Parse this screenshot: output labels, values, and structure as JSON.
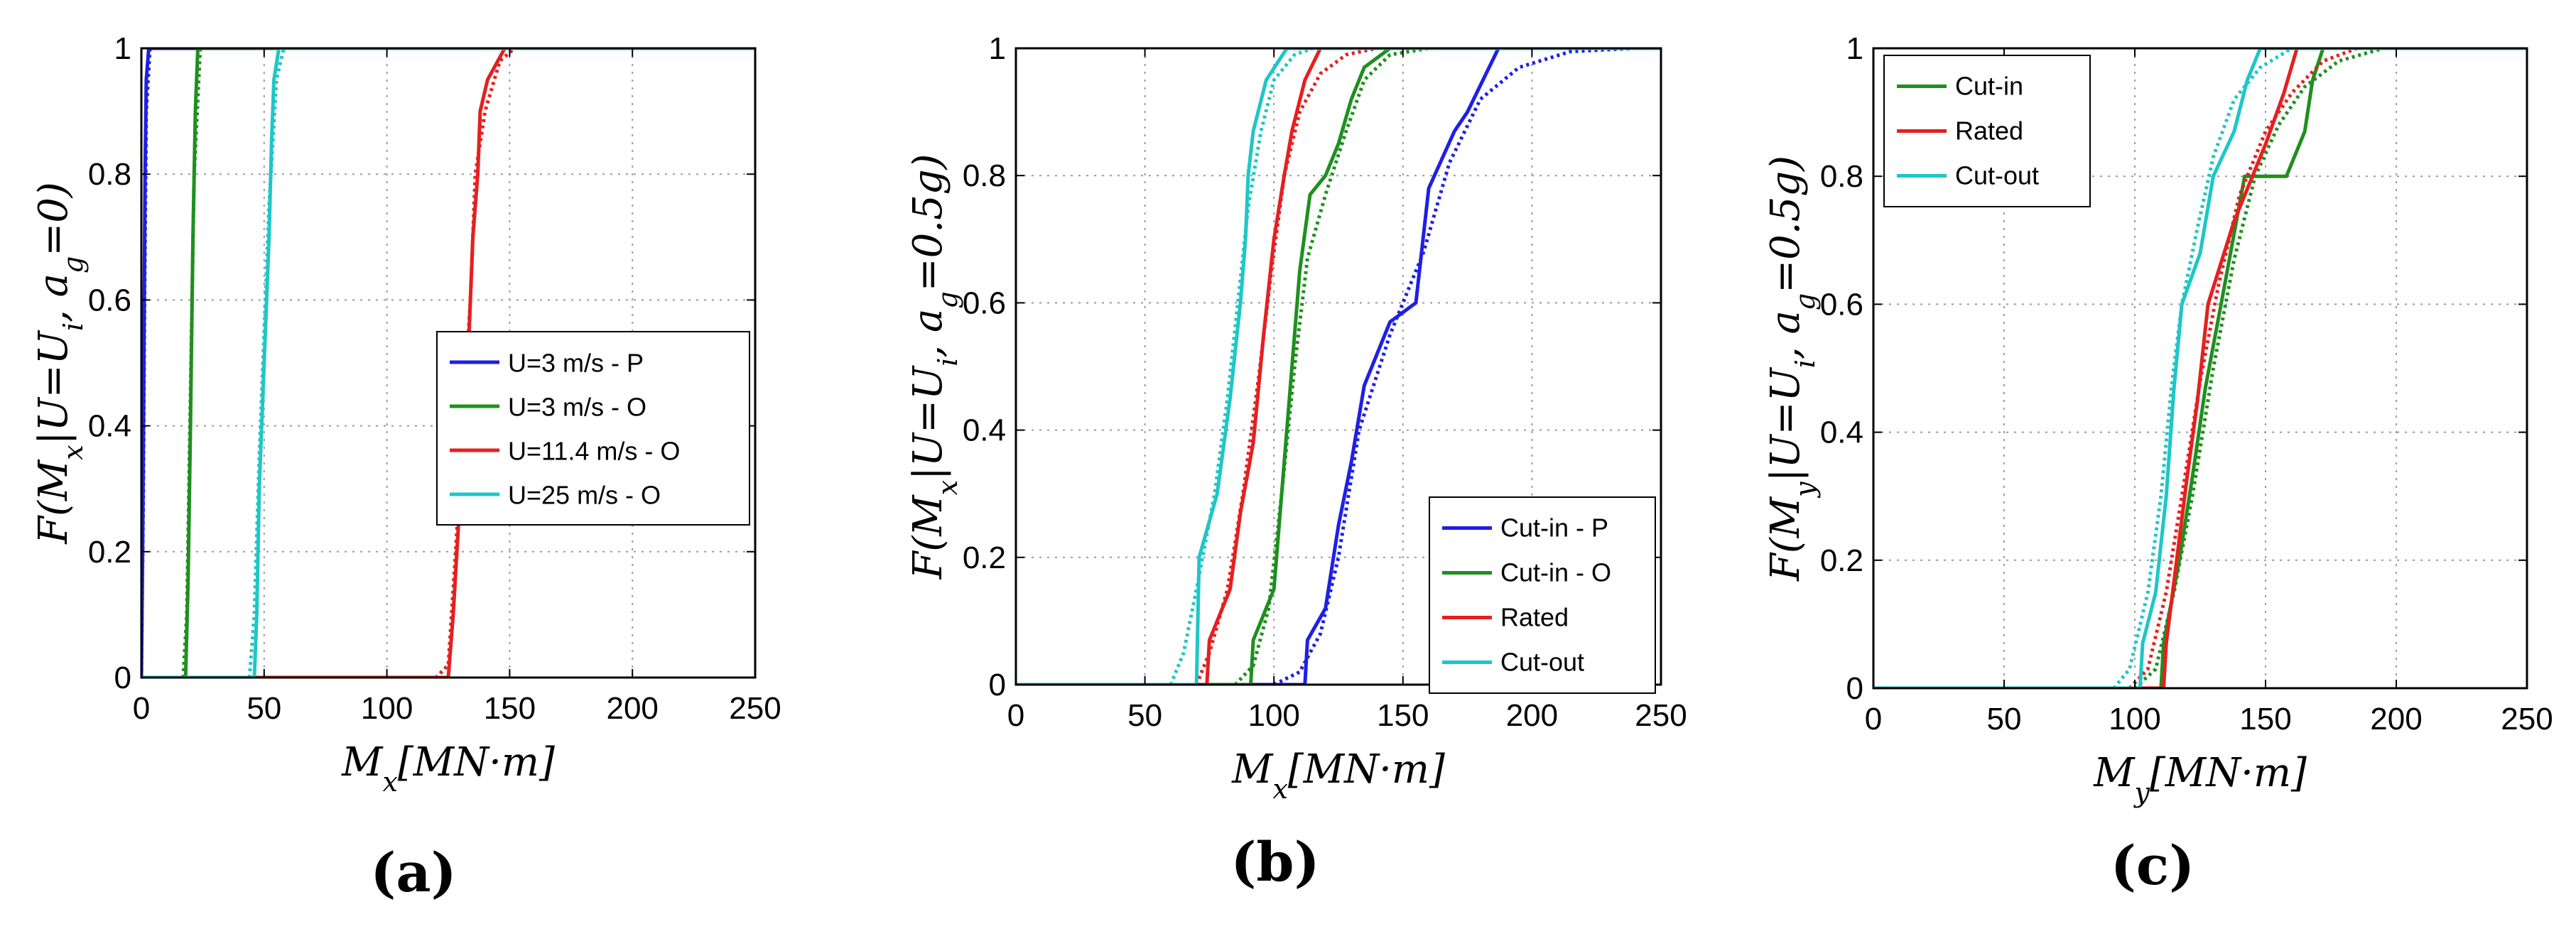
{
  "chart_data": [
    {
      "type": "line",
      "panel_label": "(a)",
      "xlabel": "M_x[MN·m]",
      "ylabel": "F(M_x|U=U_i, a_g=0)",
      "xlim": [
        0,
        250
      ],
      "ylim": [
        0,
        1
      ],
      "xticks": [
        0,
        50,
        100,
        150,
        200,
        250
      ],
      "yticks": [
        0,
        0.2,
        0.4,
        0.6,
        0.8,
        1
      ],
      "grid": true,
      "legend_position": "center-right",
      "series": [
        {
          "name": "U=3 m/s - P",
          "color": "#1f1fe6",
          "solid": [
            [
              0,
              0
            ],
            [
              0.5,
              0.2
            ],
            [
              1,
              0.5
            ],
            [
              1.5,
              0.8
            ],
            [
              2,
              0.95
            ],
            [
              3,
              1
            ],
            [
              250,
              1
            ]
          ],
          "dotted": [
            [
              0,
              0
            ],
            [
              0.8,
              0.3
            ],
            [
              1.3,
              0.6
            ],
            [
              2,
              0.9
            ],
            [
              3.5,
              1
            ]
          ]
        },
        {
          "name": "U=3 m/s - O",
          "color": "#1f8f1f",
          "solid": [
            [
              0,
              0
            ],
            [
              18,
              0
            ],
            [
              19,
              0.15
            ],
            [
              20,
              0.4
            ],
            [
              21,
              0.7
            ],
            [
              22,
              0.9
            ],
            [
              23,
              1
            ],
            [
              250,
              1
            ]
          ],
          "dotted": [
            [
              17,
              0
            ],
            [
              18.5,
              0.1
            ],
            [
              20,
              0.45
            ],
            [
              21.5,
              0.8
            ],
            [
              24,
              1
            ]
          ]
        },
        {
          "name": "U=11.4 m/s - O",
          "color": "#e61f1f",
          "solid": [
            [
              0,
              0
            ],
            [
              125,
              0
            ],
            [
              127,
              0.1
            ],
            [
              130,
              0.3
            ],
            [
              133,
              0.5
            ],
            [
              135,
              0.7
            ],
            [
              137,
              0.8
            ],
            [
              138,
              0.9
            ],
            [
              141,
              0.95
            ],
            [
              148,
              1
            ],
            [
              250,
              1
            ]
          ],
          "dotted": [
            [
              0,
              0
            ],
            [
              120,
              0
            ],
            [
              125,
              0.02
            ],
            [
              128,
              0.2
            ],
            [
              131,
              0.4
            ],
            [
              134,
              0.6
            ],
            [
              136,
              0.8
            ],
            [
              140,
              0.9
            ],
            [
              146,
              0.98
            ],
            [
              152,
              1
            ]
          ]
        },
        {
          "name": "U=25 m/s - O",
          "color": "#1fc6c6",
          "solid": [
            [
              0,
              0
            ],
            [
              46,
              0
            ],
            [
              47,
              0.1
            ],
            [
              48,
              0.3
            ],
            [
              50,
              0.5
            ],
            [
              52,
              0.7
            ],
            [
              53,
              0.85
            ],
            [
              54,
              0.95
            ],
            [
              56,
              1
            ],
            [
              250,
              1
            ]
          ],
          "dotted": [
            [
              44,
              0
            ],
            [
              46,
              0.1
            ],
            [
              48,
              0.35
            ],
            [
              50,
              0.55
            ],
            [
              52,
              0.75
            ],
            [
              55,
              0.95
            ],
            [
              58,
              1
            ]
          ]
        }
      ]
    },
    {
      "type": "line",
      "panel_label": "(b)",
      "xlabel": "M_x[MN·m]",
      "ylabel": "F(M_x|U=U_i, a_g=0.5g)",
      "xlim": [
        0,
        250
      ],
      "ylim": [
        0,
        1
      ],
      "xticks": [
        0,
        50,
        100,
        150,
        200,
        250
      ],
      "yticks": [
        0,
        0.2,
        0.4,
        0.6,
        0.8,
        1
      ],
      "grid": true,
      "legend_position": "bottom-right",
      "series": [
        {
          "name": "Cut-in - P",
          "color": "#1f1fe6",
          "solid": [
            [
              0,
              0
            ],
            [
              112,
              0
            ],
            [
              113,
              0.07
            ],
            [
              120,
              0.12
            ],
            [
              125,
              0.25
            ],
            [
              130,
              0.35
            ],
            [
              135,
              0.47
            ],
            [
              145,
              0.57
            ],
            [
              155,
              0.6
            ],
            [
              160,
              0.78
            ],
            [
              170,
              0.87
            ],
            [
              175,
              0.9
            ],
            [
              187,
              1
            ],
            [
              250,
              1
            ]
          ],
          "dotted": [
            [
              100,
              0
            ],
            [
              110,
              0.02
            ],
            [
              118,
              0.08
            ],
            [
              125,
              0.2
            ],
            [
              133,
              0.4
            ],
            [
              145,
              0.55
            ],
            [
              158,
              0.68
            ],
            [
              168,
              0.82
            ],
            [
              180,
              0.92
            ],
            [
              195,
              0.97
            ],
            [
              215,
              0.995
            ],
            [
              240,
              1
            ]
          ]
        },
        {
          "name": "Cut-in - O",
          "color": "#1f8f1f",
          "solid": [
            [
              0,
              0
            ],
            [
              91,
              0
            ],
            [
              92,
              0.07
            ],
            [
              100,
              0.15
            ],
            [
              103,
              0.3
            ],
            [
              107,
              0.5
            ],
            [
              110,
              0.65
            ],
            [
              114,
              0.77
            ],
            [
              120,
              0.8
            ],
            [
              125,
              0.85
            ],
            [
              130,
              0.92
            ],
            [
              135,
              0.97
            ],
            [
              145,
              1
            ],
            [
              250,
              1
            ]
          ],
          "dotted": [
            [
              85,
              0
            ],
            [
              92,
              0.03
            ],
            [
              98,
              0.12
            ],
            [
              103,
              0.3
            ],
            [
              108,
              0.5
            ],
            [
              113,
              0.67
            ],
            [
              120,
              0.77
            ],
            [
              128,
              0.87
            ],
            [
              135,
              0.95
            ],
            [
              145,
              0.99
            ],
            [
              160,
              1
            ]
          ]
        },
        {
          "name": "Rated",
          "color": "#e61f1f",
          "solid": [
            [
              0,
              0
            ],
            [
              74,
              0
            ],
            [
              75,
              0.07
            ],
            [
              83,
              0.15
            ],
            [
              87,
              0.27
            ],
            [
              92,
              0.38
            ],
            [
              96,
              0.55
            ],
            [
              100,
              0.7
            ],
            [
              104,
              0.8
            ],
            [
              107,
              0.87
            ],
            [
              112,
              0.95
            ],
            [
              118,
              1
            ],
            [
              250,
              1
            ]
          ],
          "dotted": [
            [
              70,
              0
            ],
            [
              75,
              0.05
            ],
            [
              82,
              0.15
            ],
            [
              88,
              0.3
            ],
            [
              94,
              0.48
            ],
            [
              99,
              0.65
            ],
            [
              104,
              0.8
            ],
            [
              110,
              0.9
            ],
            [
              118,
              0.96
            ],
            [
              128,
              0.99
            ],
            [
              140,
              1
            ]
          ]
        },
        {
          "name": "Cut-out",
          "color": "#1fc6c6",
          "solid": [
            [
              0,
              0
            ],
            [
              70,
              0
            ],
            [
              71,
              0.2
            ],
            [
              78,
              0.3
            ],
            [
              83,
              0.45
            ],
            [
              87,
              0.6
            ],
            [
              89,
              0.7
            ],
            [
              90,
              0.8
            ],
            [
              92,
              0.87
            ],
            [
              97,
              0.95
            ],
            [
              105,
              1
            ],
            [
              250,
              1
            ]
          ],
          "dotted": [
            [
              60,
              0
            ],
            [
              65,
              0.05
            ],
            [
              70,
              0.15
            ],
            [
              77,
              0.3
            ],
            [
              82,
              0.45
            ],
            [
              86,
              0.6
            ],
            [
              90,
              0.75
            ],
            [
              95,
              0.87
            ],
            [
              100,
              0.95
            ],
            [
              108,
              0.99
            ],
            [
              115,
              1
            ]
          ]
        }
      ]
    },
    {
      "type": "line",
      "panel_label": "(c)",
      "xlabel": "M_y[MN·m]",
      "ylabel": "F(M_y|U=U_i, a_g=0.5g)",
      "xlim": [
        0,
        250
      ],
      "ylim": [
        0,
        1
      ],
      "xticks": [
        0,
        50,
        100,
        150,
        200,
        250
      ],
      "yticks": [
        0,
        0.2,
        0.4,
        0.6,
        0.8,
        1
      ],
      "grid": true,
      "legend_position": "top-left",
      "series": [
        {
          "name": "Cut-in",
          "color": "#1f8f1f",
          "solid": [
            [
              0,
              0
            ],
            [
              110,
              0
            ],
            [
              111,
              0.07
            ],
            [
              117,
              0.2
            ],
            [
              122,
              0.33
            ],
            [
              127,
              0.47
            ],
            [
              133,
              0.6
            ],
            [
              142,
              0.8
            ],
            [
              158,
              0.8
            ],
            [
              165,
              0.87
            ],
            [
              168,
              0.95
            ],
            [
              172,
              1
            ],
            [
              250,
              1
            ]
          ],
          "dotted": [
            [
              100,
              0
            ],
            [
              108,
              0.03
            ],
            [
              115,
              0.15
            ],
            [
              122,
              0.3
            ],
            [
              130,
              0.5
            ],
            [
              138,
              0.67
            ],
            [
              146,
              0.8
            ],
            [
              155,
              0.88
            ],
            [
              165,
              0.94
            ],
            [
              178,
              0.98
            ],
            [
              195,
              1
            ]
          ]
        },
        {
          "name": "Rated",
          "color": "#e61f1f",
          "solid": [
            [
              0,
              0
            ],
            [
              111,
              0
            ],
            [
              112,
              0.07
            ],
            [
              116,
              0.2
            ],
            [
              120,
              0.33
            ],
            [
              124,
              0.45
            ],
            [
              128,
              0.6
            ],
            [
              138,
              0.73
            ],
            [
              145,
              0.8
            ],
            [
              150,
              0.85
            ],
            [
              157,
              0.93
            ],
            [
              162,
              1
            ],
            [
              250,
              1
            ]
          ],
          "dotted": [
            [
              98,
              0
            ],
            [
              105,
              0.03
            ],
            [
              112,
              0.15
            ],
            [
              118,
              0.3
            ],
            [
              125,
              0.48
            ],
            [
              132,
              0.63
            ],
            [
              140,
              0.77
            ],
            [
              150,
              0.87
            ],
            [
              160,
              0.93
            ],
            [
              172,
              0.98
            ],
            [
              185,
              1
            ]
          ]
        },
        {
          "name": "Cut-out",
          "color": "#1fc6c6",
          "solid": [
            [
              0,
              0
            ],
            [
              102,
              0
            ],
            [
              103,
              0.07
            ],
            [
              108,
              0.15
            ],
            [
              112,
              0.3
            ],
            [
              115,
              0.47
            ],
            [
              118,
              0.6
            ],
            [
              125,
              0.68
            ],
            [
              130,
              0.8
            ],
            [
              138,
              0.87
            ],
            [
              143,
              0.95
            ],
            [
              148,
              1
            ],
            [
              250,
              1
            ]
          ],
          "dotted": [
            [
              92,
              0
            ],
            [
              98,
              0.03
            ],
            [
              105,
              0.15
            ],
            [
              110,
              0.3
            ],
            [
              114,
              0.47
            ],
            [
              118,
              0.6
            ],
            [
              124,
              0.72
            ],
            [
              130,
              0.83
            ],
            [
              138,
              0.92
            ],
            [
              148,
              0.97
            ],
            [
              160,
              1
            ]
          ]
        }
      ]
    }
  ]
}
